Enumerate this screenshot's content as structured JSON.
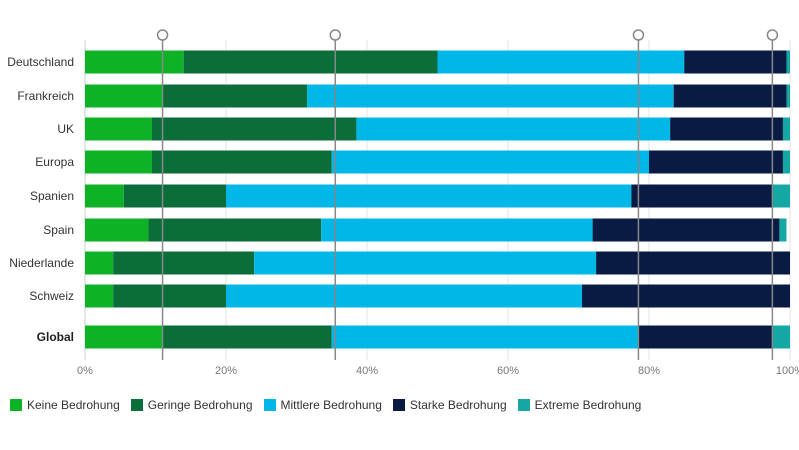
{
  "chart_data": {
    "type": "bar",
    "orientation": "horizontal",
    "stacked": true,
    "title": "",
    "xlabel": "",
    "ylabel": "",
    "xlim": [
      0,
      100
    ],
    "x_ticks": [
      0,
      20,
      40,
      60,
      80,
      100
    ],
    "x_tick_labels": [
      "0%",
      "20%",
      "40%",
      "60%",
      "80%",
      "100%"
    ],
    "grid": "vertical",
    "legend_position": "bottom",
    "categories": [
      "Deutschland",
      "Frankreich",
      "UK",
      "Europa",
      "Spanien",
      "Spain",
      "Niederlande",
      "Schweiz",
      "Global"
    ],
    "bold_categories": [
      "Global"
    ],
    "series": [
      {
        "name": "Keine Bedrohung",
        "color": "#0db226",
        "values": [
          14,
          11,
          9.5,
          9.5,
          5.5,
          9,
          4,
          4,
          11
        ]
      },
      {
        "name": "Geringe Bedrohung",
        "color": "#0b6e3a",
        "values": [
          36,
          20.5,
          29,
          25.5,
          14.5,
          24.5,
          20,
          16,
          24
        ]
      },
      {
        "name": "Mittlere Bedrohung",
        "color": "#00b7e8",
        "values": [
          35,
          52,
          44.5,
          45,
          57.5,
          38.5,
          48.5,
          50.5,
          43.5
        ]
      },
      {
        "name": "Starke Bedrohung",
        "color": "#091b43",
        "values": [
          14.5,
          16,
          16,
          19,
          20,
          26.5,
          27.5,
          29.5,
          19
        ]
      },
      {
        "name": "Extreme Bedrohung",
        "color": "#14a7a3",
        "values": [
          0.5,
          0.5,
          1,
          1,
          2.5,
          1,
          0,
          0,
          2.5
        ]
      }
    ],
    "marker_lines": [
      11,
      35.5,
      78.5,
      97.5
    ],
    "marker_color": "#888888"
  }
}
